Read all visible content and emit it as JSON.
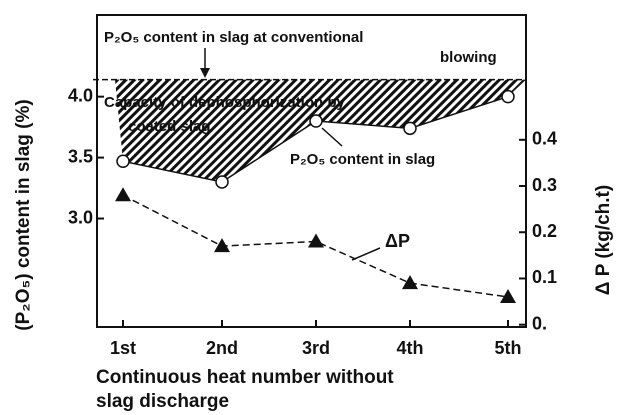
{
  "chart_data": {
    "type": "line",
    "categories": [
      "1st",
      "2nd",
      "3rd",
      "4th",
      "5th"
    ],
    "series": [
      {
        "values": [
          3.47,
          3.3,
          3.8,
          3.74,
          4.0
        ],
        "color": "#111111",
        "marker": "circle",
        "axis": "y"
      },
      {
        "values": [
          0.28,
          0.17,
          0.18,
          0.09,
          0.06
        ],
        "color": "#111111",
        "marker": "triangle",
        "axis": "y2",
        "dashed": true
      }
    ],
    "conventional_level": 4.14,
    "ylim": [
      2.11,
      4.67
    ],
    "yticks": [
      {
        "value": 3,
        "label": "3.0"
      },
      3.5,
      {
        "value": 4,
        "label": "4.0"
      }
    ],
    "y2lim": [
      -0.005,
      0.67
    ],
    "y2ticks": [
      {
        "value": 0,
        "label": "0."
      },
      0.1,
      0.2,
      0.3,
      0.4
    ],
    "ylabel": "(P₂O₅) content in slag (%)",
    "y2label": "Δ P (kg/ch.t)",
    "xlabel_lines": [
      "Continuous heat number without",
      "slag discharge"
    ],
    "annotations": {
      "conventional": [
        "P₂O₅ content in slag at conventional",
        "blowing"
      ],
      "capacity": [
        "Capacity of dephosphorization by",
        "coated slag"
      ],
      "content": "P₂O₅ content in slag",
      "delta": "ΔP"
    }
  }
}
